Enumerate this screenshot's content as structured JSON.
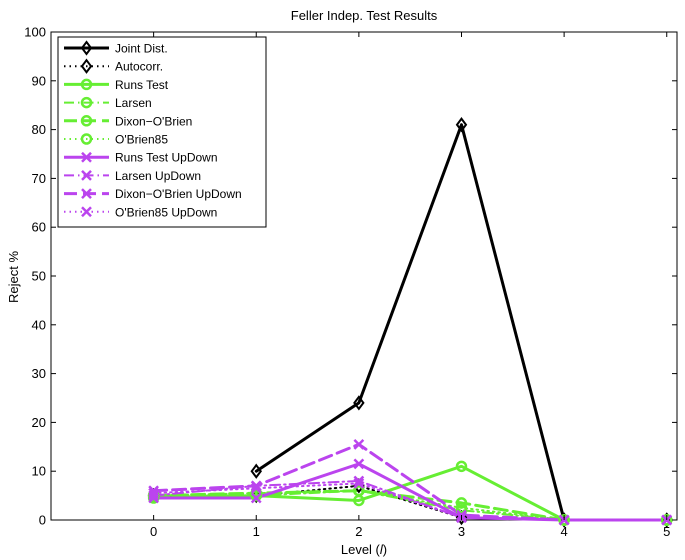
{
  "chart_data": {
    "type": "line",
    "title": "Feller Indep. Test Results",
    "xlabel_main": "Level (",
    "xlabel_var": "l",
    "xlabel_end": ")",
    "ylabel": "Reject %",
    "xlim": [
      -1,
      5.1
    ],
    "ylim": [
      0,
      100
    ],
    "xticks": [
      "0",
      "1",
      "2",
      "3",
      "4",
      "5"
    ],
    "yticks": [
      "0",
      "10",
      "20",
      "30",
      "40",
      "50",
      "60",
      "70",
      "80",
      "90",
      "100"
    ],
    "legend_position": "top-left",
    "series": [
      {
        "name": "Joint Dist.",
        "color": "#000000",
        "dash": "solid",
        "width": 3,
        "marker": "diamond",
        "x": [
          1,
          2,
          3,
          4,
          5
        ],
        "y": [
          10,
          24,
          81,
          0,
          0
        ]
      },
      {
        "name": "Autocorr.",
        "color": "#000000",
        "dash": "dotted",
        "width": 2,
        "marker": "diamond",
        "x": [
          0,
          1,
          2,
          3,
          4,
          5
        ],
        "y": [
          5,
          5,
          7,
          0.5,
          0,
          0
        ]
      },
      {
        "name": "Runs Test",
        "color": "#66ee33",
        "dash": "solid",
        "width": 3,
        "marker": "circle",
        "x": [
          0,
          1,
          2,
          3,
          4,
          5
        ],
        "y": [
          4.5,
          5,
          4,
          11,
          0,
          0
        ]
      },
      {
        "name": "Larsen",
        "color": "#66ee33",
        "dash": "dashdot",
        "width": 2,
        "marker": "circle",
        "x": [
          0,
          1,
          2,
          3,
          4,
          5
        ],
        "y": [
          5,
          5,
          6,
          2,
          0,
          0
        ]
      },
      {
        "name": "Dixon−O'Brien",
        "color": "#66ee33",
        "dash": "dashed",
        "width": 3,
        "marker": "circle",
        "x": [
          0,
          1,
          2,
          3,
          4,
          5
        ],
        "y": [
          5,
          5.5,
          6,
          3.5,
          0,
          0
        ]
      },
      {
        "name": "O'Brien85",
        "color": "#66ee33",
        "dash": "dotted",
        "width": 2,
        "marker": "circle",
        "x": [
          0,
          1,
          2,
          3,
          4,
          5
        ],
        "y": [
          5,
          5.5,
          6,
          2.5,
          0,
          0
        ]
      },
      {
        "name": "Runs Test UpDown",
        "color": "#bb44ee",
        "dash": "solid",
        "width": 3,
        "marker": "x",
        "x": [
          0,
          1,
          2,
          3,
          4,
          5
        ],
        "y": [
          4.5,
          4.5,
          11.5,
          0.5,
          0,
          0
        ]
      },
      {
        "name": "Larsen UpDown",
        "color": "#bb44ee",
        "dash": "dashdot",
        "width": 2,
        "marker": "x",
        "x": [
          0,
          1,
          2,
          3,
          4,
          5
        ],
        "y": [
          5,
          7,
          8,
          0.5,
          0,
          0
        ]
      },
      {
        "name": "Dixon−O'Brien UpDown",
        "color": "#bb44ee",
        "dash": "dashed",
        "width": 3,
        "marker": "x",
        "x": [
          0,
          1,
          2,
          3,
          4,
          5
        ],
        "y": [
          6,
          7,
          15.5,
          1,
          0,
          0
        ]
      },
      {
        "name": "O'Brien85 UpDown",
        "color": "#bb44ee",
        "dash": "dotted",
        "width": 2,
        "marker": "x",
        "x": [
          0,
          1,
          2,
          3,
          4,
          5
        ],
        "y": [
          5.5,
          6.5,
          7.5,
          0.5,
          0,
          0
        ]
      }
    ]
  }
}
